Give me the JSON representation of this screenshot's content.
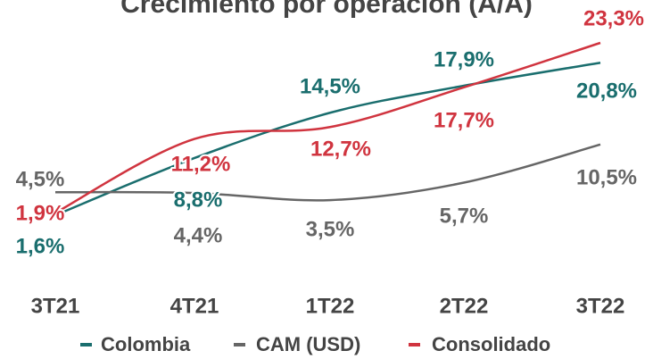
{
  "chart_data": {
    "type": "line",
    "title": "Crecimiento por operación (A/A)",
    "categories": [
      "3T21",
      "4T21",
      "1T22",
      "2T22",
      "3T22"
    ],
    "series": [
      {
        "name": "Colombia",
        "color": "#1a6e6e",
        "values": [
          1.6,
          8.8,
          14.5,
          17.9,
          20.8
        ],
        "value_labels": [
          "1,6%",
          "8,8%",
          "14,5%",
          "17,9%",
          "20,8%"
        ]
      },
      {
        "name": "CAM (USD)",
        "color": "#666666",
        "values": [
          4.5,
          4.4,
          3.5,
          5.7,
          10.5
        ],
        "value_labels": [
          "4,5%",
          "4,4%",
          "3,5%",
          "5,7%",
          "10,5%"
        ]
      },
      {
        "name": "Consolidado",
        "color": "#d0343f",
        "values": [
          1.9,
          11.2,
          12.7,
          17.7,
          23.3
        ],
        "value_labels": [
          "1,9%",
          "11,2%",
          "12,7%",
          "17,7%",
          "23,3%"
        ]
      }
    ]
  }
}
